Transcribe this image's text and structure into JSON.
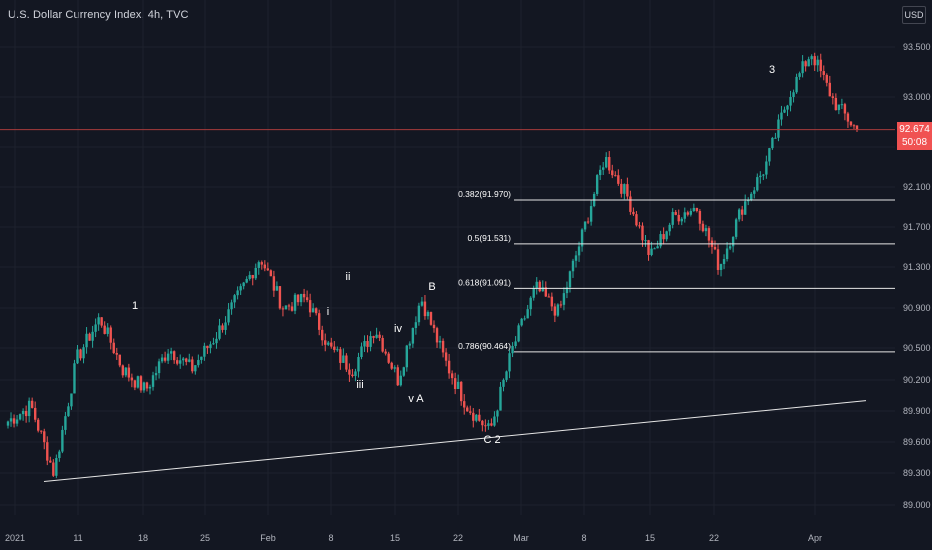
{
  "header": {
    "title": "U.S. Dollar Currency Index, 4h, TVC",
    "currency": "USD"
  },
  "price_tag": {
    "value": "92.674",
    "countdown": "50:08",
    "color": "#f05252"
  },
  "colors": {
    "up": "#26a69a",
    "down": "#ef5350",
    "background": "#131722",
    "grid": "#1e222d",
    "line": "#d1d4dc"
  },
  "chart_data": {
    "type": "candlestick",
    "title": "U.S. Dollar Currency Index, 4h, TVC",
    "ylim": [
      88.9,
      93.7
    ],
    "y_ticks": [
      "93.500",
      "93.000",
      "92.500",
      "92.100",
      "91.700",
      "91.300",
      "90.900",
      "90.500",
      "90.200",
      "89.900",
      "89.600",
      "89.300",
      "89.000"
    ],
    "x_ticks": [
      "2021",
      "11",
      "18",
      "25",
      "Feb",
      "8",
      "15",
      "22",
      "Mar",
      "8",
      "15",
      "22",
      "Apr"
    ],
    "price_path": [
      [
        "2021",
        89.8
      ],
      [
        "2021",
        89.95
      ],
      [
        "11",
        89.3
      ],
      [
        "11",
        90.4
      ],
      [
        "18",
        90.8
      ],
      [
        "18",
        90.3
      ],
      [
        "25",
        90.1
      ],
      [
        "25",
        90.5
      ],
      [
        "Feb",
        90.3
      ],
      [
        "Feb",
        90.6
      ],
      [
        "Feb",
        91.0
      ],
      [
        "Feb",
        91.4
      ],
      [
        "8",
        90.9
      ],
      [
        "8",
        91.0
      ],
      [
        "8",
        90.5
      ],
      [
        "15",
        90.3
      ],
      [
        "15",
        90.7
      ],
      [
        "15",
        90.2
      ],
      [
        "22",
        91.0
      ],
      [
        "22",
        90.4
      ],
      [
        "22",
        89.95
      ],
      [
        "22",
        89.7
      ],
      [
        "Mar",
        90.5
      ],
      [
        "Mar",
        91.1
      ],
      [
        "Mar",
        90.85
      ],
      [
        "8",
        91.6
      ],
      [
        "8",
        92.4
      ],
      [
        "8",
        92.0
      ],
      [
        "15",
        91.4
      ],
      [
        "15",
        91.8
      ],
      [
        "15",
        91.9
      ],
      [
        "22",
        91.3
      ],
      [
        "22",
        91.9
      ],
      [
        "22",
        92.3
      ],
      [
        "Apr",
        93.0
      ],
      [
        "Apr",
        93.45
      ],
      [
        "Apr",
        92.95
      ],
      [
        "Apr",
        92.67
      ]
    ],
    "last_price": 92.674,
    "horizontal_lines": [
      {
        "label": "0.382(91.970)",
        "value": 91.97
      },
      {
        "label": "0.5(91.531)",
        "value": 91.531
      },
      {
        "label": "0.618(91.091)",
        "value": 91.091
      },
      {
        "label": "0.786(90.464)",
        "value": 90.464
      }
    ],
    "trendline": {
      "from": {
        "date": "Jan 6",
        "value": 89.22
      },
      "to": {
        "date": "Apr 7",
        "value": 90.0
      }
    },
    "annotations": [
      "1",
      "i",
      "ii",
      "iii",
      "iv",
      "v A",
      "B",
      "C 2",
      "3"
    ]
  }
}
